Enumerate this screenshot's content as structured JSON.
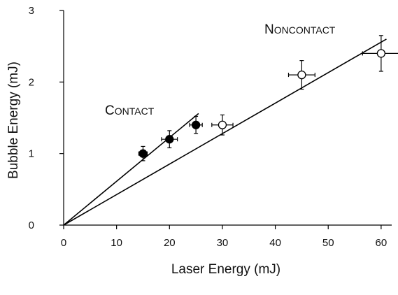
{
  "chart_data": {
    "type": "scatter",
    "title": "",
    "xlabel": "Laser Energy (mJ)",
    "ylabel": "Bubble Energy (mJ)",
    "xlim": [
      0,
      62
    ],
    "ylim": [
      0,
      3
    ],
    "xticks": [
      0,
      10,
      20,
      30,
      40,
      50,
      60
    ],
    "yticks": [
      0,
      1,
      2,
      3
    ],
    "grid": false,
    "legend": "none",
    "series": [
      {
        "name": "Contact",
        "marker": "filled-circle",
        "color": "#000000",
        "label_cap": "C",
        "label_rest": "ONTACT",
        "points": [
          {
            "x": 15,
            "y": 1.0,
            "xerr": 0.8,
            "yerr": 0.1
          },
          {
            "x": 20,
            "y": 1.2,
            "xerr": 1.5,
            "yerr": 0.12
          },
          {
            "x": 25,
            "y": 1.4,
            "xerr": 1.2,
            "yerr": 0.12
          }
        ],
        "fit": {
          "x": [
            0,
            25.5
          ],
          "y": [
            0,
            1.56
          ]
        }
      },
      {
        "name": "Noncontact",
        "marker": "open-circle",
        "color": "#000000",
        "label_cap": "N",
        "label_rest": "ONCONTACT",
        "points": [
          {
            "x": 30,
            "y": 1.4,
            "xerr": 2.0,
            "yerr": 0.14
          },
          {
            "x": 45,
            "y": 2.1,
            "xerr": 2.5,
            "yerr": 0.2
          },
          {
            "x": 60,
            "y": 2.4,
            "xerr": 3.5,
            "yerr": 0.25
          }
        ],
        "fit": {
          "x": [
            0,
            61
          ],
          "y": [
            0,
            2.6
          ]
        }
      }
    ]
  }
}
